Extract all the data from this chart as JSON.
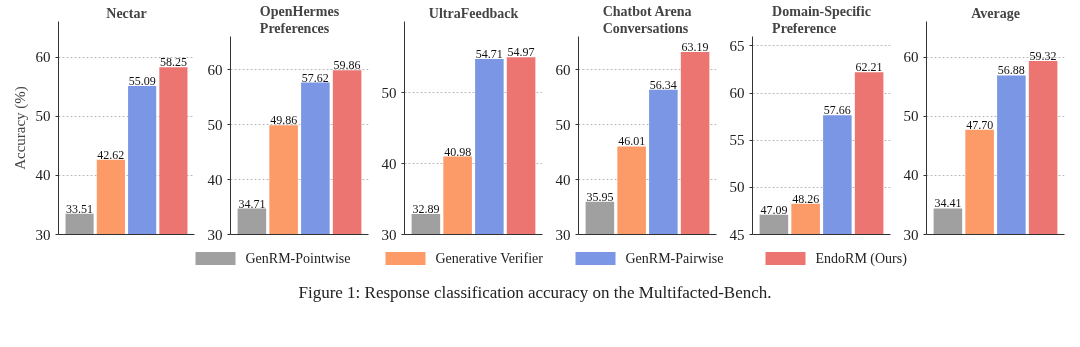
{
  "chart_data": [
    {
      "type": "bar",
      "title": "Nectar",
      "ylabel": "Accuracy (%)",
      "categories": [
        null
      ],
      "ylim": [
        30,
        66
      ],
      "yticks": [
        30,
        40,
        50,
        60
      ],
      "grid": "y",
      "tick_labels": "y",
      "legend": "bottom",
      "annotations": [
        "Figure 1: Response classification accuracy on the Multifacted-Bench."
      ],
      "series": [
        {
          "name": "GenRM-Pointwise",
          "color": "#a0a0a0",
          "values": [
            33.51
          ],
          "value_labels": [
            "33.51"
          ]
        },
        {
          "name": "Generative Verifier",
          "color": "#fc9a68",
          "values": [
            42.62
          ],
          "value_labels": [
            "42.62"
          ]
        },
        {
          "name": "GenRM-Pairwise",
          "color": "#7b96e4",
          "values": [
            55.09
          ],
          "value_labels": [
            "55.09"
          ]
        },
        {
          "name": "EndoRM (Ours)",
          "color": "#ed7571",
          "values": [
            58.25
          ],
          "value_labels": [
            "58.25"
          ]
        }
      ]
    },
    {
      "type": "bar",
      "title": "OpenHermes\nPreferences",
      "categories": [
        null
      ],
      "ylim": [
        30,
        66
      ],
      "yticks": [
        30,
        40,
        50,
        60
      ],
      "grid": "y",
      "tick_labels": "y",
      "series": [
        {
          "color": "#a0a0a0",
          "values": [
            34.71
          ],
          "value_labels": [
            "34.71"
          ]
        },
        {
          "color": "#fc9a68",
          "values": [
            49.86
          ],
          "value_labels": [
            "49.86"
          ]
        },
        {
          "color": "#7b96e4",
          "values": [
            57.62
          ],
          "value_labels": [
            "57.62"
          ]
        },
        {
          "color": "#ed7571",
          "values": [
            59.86
          ],
          "value_labels": [
            "59.86"
          ]
        }
      ]
    },
    {
      "type": "bar",
      "title": "UltraFeedback",
      "categories": [
        null
      ],
      "ylim": [
        30,
        60
      ],
      "yticks": [
        30,
        40,
        50
      ],
      "grid": "y",
      "tick_labels": "y",
      "series": [
        {
          "color": "#a0a0a0",
          "values": [
            32.89
          ],
          "value_labels": [
            "32.89"
          ]
        },
        {
          "color": "#fc9a68",
          "values": [
            40.98
          ],
          "value_labels": [
            "40.98"
          ]
        },
        {
          "color": "#7b96e4",
          "values": [
            54.71
          ],
          "value_labels": [
            "54.71"
          ]
        },
        {
          "color": "#ed7571",
          "values": [
            54.97
          ],
          "value_labels": [
            "54.97"
          ]
        }
      ]
    },
    {
      "type": "bar",
      "title": "Chatbot Arena\nConversations",
      "categories": [
        null
      ],
      "ylim": [
        30,
        66
      ],
      "yticks": [
        30,
        40,
        50,
        60
      ],
      "grid": "y",
      "tick_labels": "y",
      "series": [
        {
          "color": "#a0a0a0",
          "values": [
            35.95
          ],
          "value_labels": [
            "35.95"
          ]
        },
        {
          "color": "#fc9a68",
          "values": [
            46.01
          ],
          "value_labels": [
            "46.01"
          ]
        },
        {
          "color": "#7b96e4",
          "values": [
            56.34
          ],
          "value_labels": [
            "56.34"
          ]
        },
        {
          "color": "#ed7571",
          "values": [
            63.19
          ],
          "value_labels": [
            "63.19"
          ]
        }
      ]
    },
    {
      "type": "bar",
      "title": "Domain-Specific\nPreference",
      "categories": [
        null
      ],
      "ylim": [
        45,
        66
      ],
      "yticks": [
        45,
        50,
        55,
        60,
        65
      ],
      "grid": "y",
      "tick_labels": "y",
      "series": [
        {
          "color": "#a0a0a0",
          "values": [
            47.09
          ],
          "value_labels": [
            "47.09"
          ]
        },
        {
          "color": "#fc9a68",
          "values": [
            48.26
          ],
          "value_labels": [
            "48.26"
          ]
        },
        {
          "color": "#7b96e4",
          "values": [
            57.66
          ],
          "value_labels": [
            "57.66"
          ]
        },
        {
          "color": "#ed7571",
          "values": [
            62.21
          ],
          "value_labels": [
            "62.21"
          ]
        }
      ]
    },
    {
      "type": "bar",
      "title": "Average",
      "categories": [
        null
      ],
      "ylim": [
        30,
        66
      ],
      "yticks": [
        30,
        40,
        50,
        60
      ],
      "grid": "y",
      "tick_labels": "y",
      "series": [
        {
          "color": "#a0a0a0",
          "values": [
            34.41
          ],
          "value_labels": [
            "34.41"
          ]
        },
        {
          "color": "#fc9a68",
          "values": [
            47.7
          ],
          "value_labels": [
            "47.70"
          ]
        },
        {
          "color": "#7b96e4",
          "values": [
            56.88
          ],
          "value_labels": [
            "56.88"
          ]
        },
        {
          "color": "#ed7571",
          "values": [
            59.32
          ],
          "value_labels": [
            "59.32"
          ]
        }
      ]
    }
  ]
}
